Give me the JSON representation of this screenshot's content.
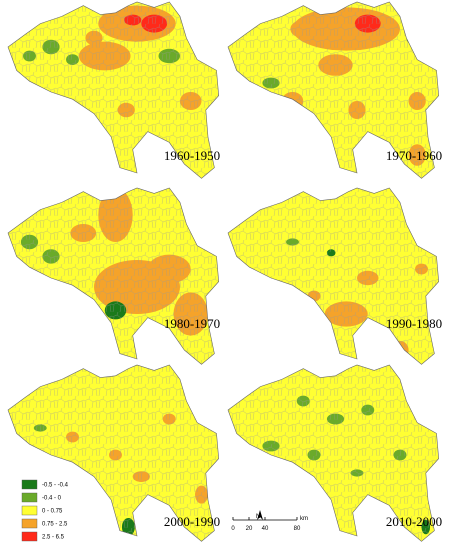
{
  "panels": [
    {
      "label": "1960-1950"
    },
    {
      "label": "1970-1960"
    },
    {
      "label": "1980-1970"
    },
    {
      "label": "1990-1980"
    },
    {
      "label": "2000-1990"
    },
    {
      "label": "2010-2000"
    }
  ],
  "legend": [
    {
      "label": "-0.5 - -0.4",
      "color": "#1a7a1a"
    },
    {
      "label": "-0.4 - 0",
      "color": "#6aaa2a"
    },
    {
      "label": "0 - 0.75",
      "color": "#ffff33"
    },
    {
      "label": "0.75 - 2.5",
      "color": "#f5a32a"
    },
    {
      "label": "2.5 - 6.5",
      "color": "#ff2a1a"
    }
  ],
  "scale": {
    "north": "N",
    "ticks": [
      "0",
      "20",
      "40",
      "80"
    ],
    "unit": "km"
  }
}
